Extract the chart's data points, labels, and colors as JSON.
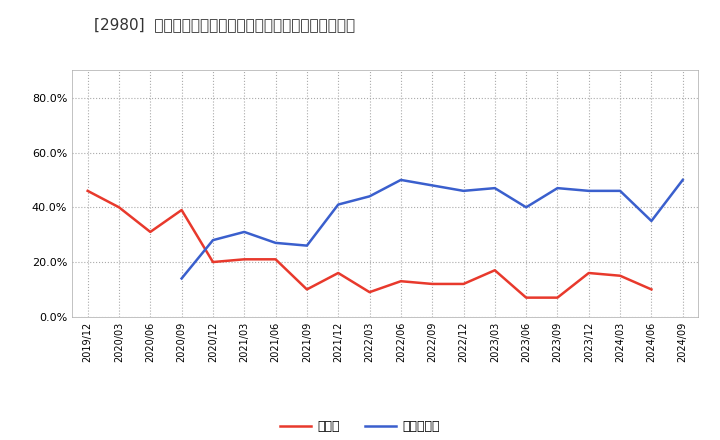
{
  "title": "[2980]  現預金、有利子負債の総資産に対する比率の推移",
  "x_labels": [
    "2019/12",
    "2020/03",
    "2020/06",
    "2020/09",
    "2020/12",
    "2021/03",
    "2021/06",
    "2021/09",
    "2021/12",
    "2022/03",
    "2022/06",
    "2022/09",
    "2022/12",
    "2023/03",
    "2023/06",
    "2023/09",
    "2023/12",
    "2024/03",
    "2024/06",
    "2024/09"
  ],
  "cash": [
    0.46,
    0.4,
    0.31,
    0.39,
    0.2,
    0.21,
    0.21,
    0.1,
    0.16,
    0.09,
    0.13,
    0.12,
    0.12,
    0.17,
    0.07,
    0.07,
    0.16,
    0.15,
    0.1,
    null
  ],
  "debt": [
    null,
    null,
    null,
    0.14,
    0.28,
    0.31,
    0.27,
    0.26,
    0.41,
    0.44,
    0.5,
    0.48,
    0.46,
    0.47,
    0.4,
    0.47,
    0.46,
    0.46,
    0.35,
    0.5
  ],
  "cash_color": "#e8392c",
  "debt_color": "#3a5fcd",
  "background_color": "#ffffff",
  "plot_bg_color": "#ffffff",
  "grid_color": "#aaaaaa",
  "ylim": [
    0.0,
    0.9
  ],
  "yticks": [
    0.0,
    0.2,
    0.4,
    0.6,
    0.8
  ],
  "ytick_labels": [
    "0.0%",
    "20.0%",
    "40.0%",
    "60.0%",
    "80.0%"
  ],
  "legend_cash": "現預金",
  "legend_debt": "有利子負債"
}
